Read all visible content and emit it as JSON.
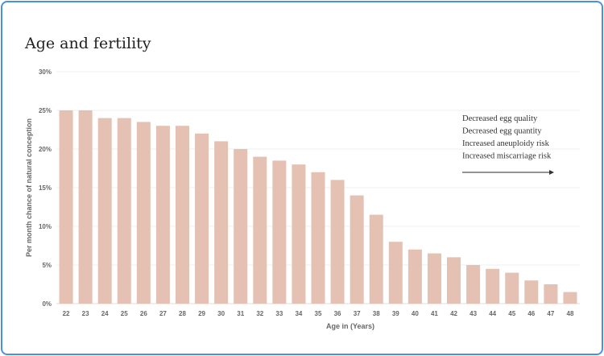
{
  "title": "Age and fertility",
  "chart_data": {
    "type": "bar",
    "title": "Age and fertility",
    "xlabel": "Age in (Years)",
    "ylabel": "Per month chance of natural conception",
    "categories": [
      "22",
      "23",
      "24",
      "25",
      "26",
      "27",
      "28",
      "29",
      "30",
      "31",
      "32",
      "33",
      "34",
      "35",
      "36",
      "37",
      "38",
      "39",
      "40",
      "41",
      "42",
      "43",
      "44",
      "45",
      "46",
      "47",
      "48"
    ],
    "values": [
      25,
      25,
      24,
      24,
      23.5,
      23,
      23,
      22,
      21,
      20,
      19,
      18.5,
      18,
      17,
      16,
      14,
      11.5,
      8,
      7,
      6.5,
      6,
      5,
      4.5,
      4,
      3,
      2.5,
      1.5
    ],
    "ylim": [
      0,
      30
    ],
    "yticks": [
      0,
      5,
      10,
      15,
      20,
      25,
      30
    ],
    "ytick_labels": [
      "0%",
      "5%",
      "10%",
      "15%",
      "20%",
      "25%",
      "30%"
    ],
    "grid": true,
    "bar_color": "#e4c1b2",
    "annotations": [
      "Decreased egg quality",
      "Decreased egg quantity",
      "Increased aneuploidy risk",
      "Increased miscarriage risk"
    ],
    "annotation_arrow": "right"
  }
}
